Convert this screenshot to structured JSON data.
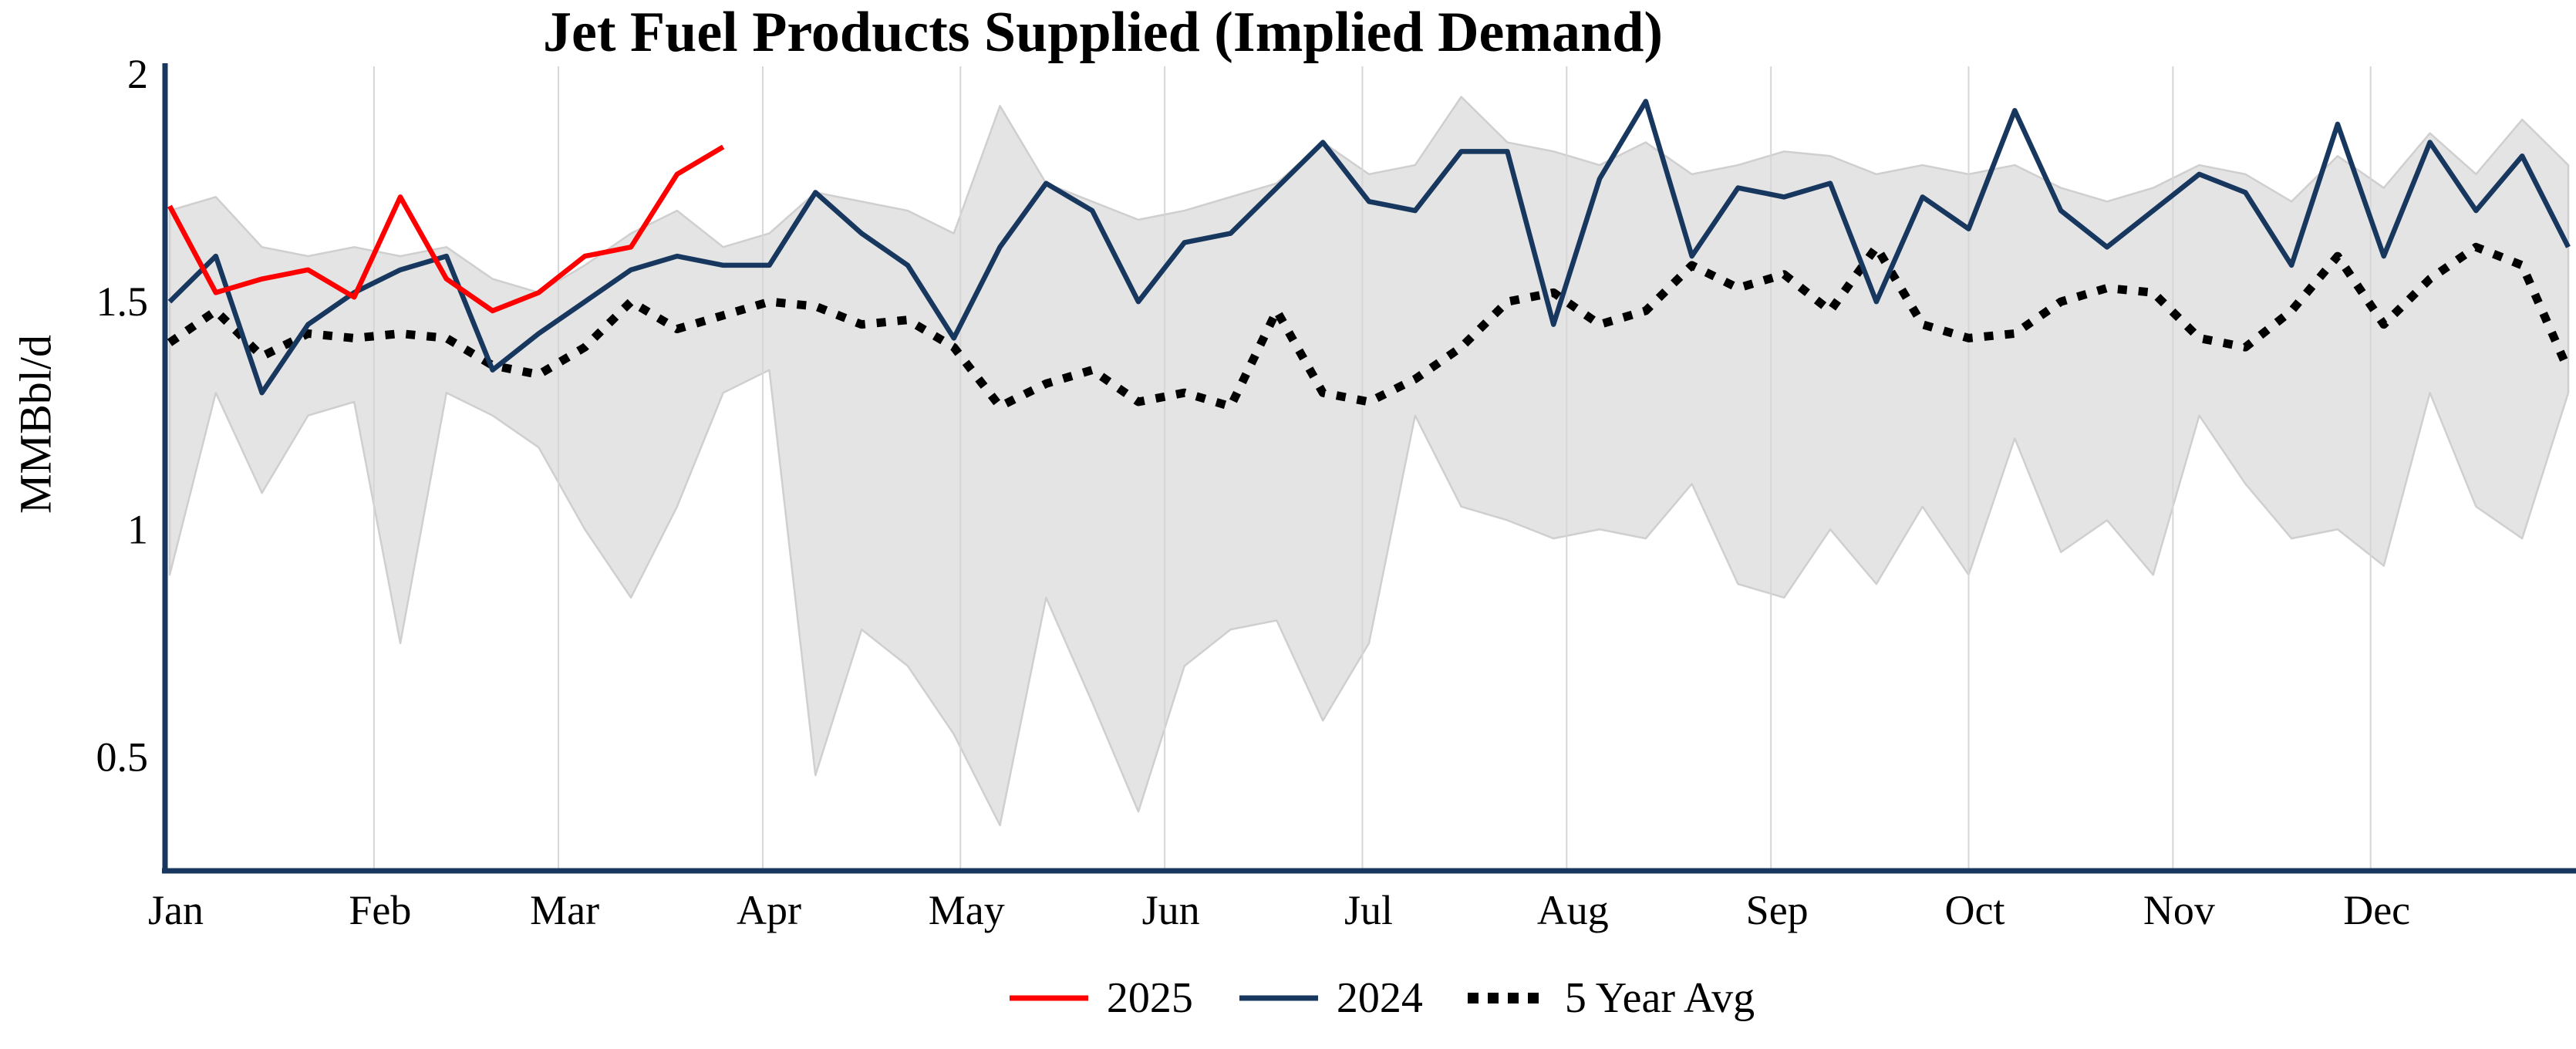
{
  "chart_data": {
    "type": "line",
    "title": "Jet Fuel Products Supplied (Implied Demand)",
    "ylabel": "MMBbl/d",
    "xlabel": "",
    "x_unit": "week",
    "ylim": [
      0.25,
      2.0
    ],
    "y_ticks": [
      2,
      1.5,
      1,
      0.5
    ],
    "y_tick_labels": [
      "2",
      "1.5",
      "1",
      "0.5"
    ],
    "x_tick_labels": [
      "Jan",
      "Feb",
      "Mar",
      "Apr",
      "May",
      "Jun",
      "Jul",
      "Aug",
      "Sep",
      "Oct",
      "Nov",
      "Dec"
    ],
    "month_start_days": [
      0,
      31,
      59,
      90,
      120,
      151,
      181,
      212,
      243,
      273,
      304,
      334
    ],
    "grid": "vertical-light",
    "legend_position": "bottom-center",
    "colors": {
      "s2025": "#fe0000",
      "s2024": "#17375e",
      "avg": "#000000",
      "band": "#e4e4e4",
      "band_edge": "#cfcfcf",
      "axis": "#17375e",
      "gridline": "#d6d6d6"
    },
    "series": [
      {
        "name": "2025",
        "color_key": "s2025",
        "style": "solid",
        "values": [
          1.71,
          1.52,
          1.55,
          1.57,
          1.51,
          1.73,
          1.55,
          1.48,
          1.52,
          1.6,
          1.62,
          1.78,
          1.84
        ]
      },
      {
        "name": "2024",
        "color_key": "s2024",
        "style": "solid",
        "values": [
          1.5,
          1.6,
          1.3,
          1.45,
          1.52,
          1.57,
          1.6,
          1.35,
          1.43,
          1.5,
          1.57,
          1.6,
          1.58,
          1.58,
          1.74,
          1.65,
          1.58,
          1.42,
          1.62,
          1.76,
          1.7,
          1.5,
          1.63,
          1.65,
          1.75,
          1.85,
          1.72,
          1.7,
          1.83,
          1.83,
          1.45,
          1.77,
          1.94,
          1.6,
          1.75,
          1.73,
          1.76,
          1.5,
          1.73,
          1.66,
          1.92,
          1.7,
          1.62,
          1.7,
          1.78,
          1.74,
          1.58,
          1.89,
          1.6,
          1.85,
          1.7,
          1.82,
          1.62
        ]
      },
      {
        "name": "5 Year Avg",
        "color_key": "avg",
        "style": "dotted",
        "values": [
          1.41,
          1.48,
          1.38,
          1.43,
          1.42,
          1.43,
          1.42,
          1.36,
          1.34,
          1.4,
          1.5,
          1.44,
          1.47,
          1.5,
          1.49,
          1.45,
          1.46,
          1.4,
          1.27,
          1.32,
          1.35,
          1.28,
          1.3,
          1.27,
          1.48,
          1.3,
          1.28,
          1.33,
          1.4,
          1.5,
          1.52,
          1.45,
          1.48,
          1.58,
          1.53,
          1.56,
          1.48,
          1.62,
          1.45,
          1.42,
          1.43,
          1.5,
          1.53,
          1.52,
          1.42,
          1.4,
          1.48,
          1.6,
          1.45,
          1.55,
          1.62,
          1.58,
          1.35
        ]
      }
    ],
    "band": {
      "upper": [
        1.7,
        1.73,
        1.62,
        1.6,
        1.62,
        1.6,
        1.62,
        1.55,
        1.52,
        1.58,
        1.65,
        1.7,
        1.62,
        1.65,
        1.74,
        1.72,
        1.7,
        1.65,
        1.93,
        1.76,
        1.72,
        1.68,
        1.7,
        1.73,
        1.76,
        1.85,
        1.78,
        1.8,
        1.95,
        1.85,
        1.83,
        1.8,
        1.85,
        1.78,
        1.8,
        1.83,
        1.82,
        1.78,
        1.8,
        1.78,
        1.8,
        1.75,
        1.72,
        1.75,
        1.8,
        1.78,
        1.72,
        1.82,
        1.75,
        1.87,
        1.78,
        1.9,
        1.8
      ],
      "lower": [
        0.9,
        1.3,
        1.08,
        1.25,
        1.28,
        0.75,
        1.3,
        1.25,
        1.18,
        1.0,
        0.85,
        1.05,
        1.3,
        1.35,
        0.46,
        0.78,
        0.7,
        0.55,
        0.35,
        0.85,
        0.62,
        0.38,
        0.7,
        0.78,
        0.8,
        0.58,
        0.75,
        1.25,
        1.05,
        1.02,
        0.98,
        1.0,
        0.98,
        1.1,
        0.88,
        0.85,
        1.0,
        0.88,
        1.05,
        0.9,
        1.2,
        0.95,
        1.02,
        0.9,
        1.25,
        1.1,
        0.98,
        1.0,
        0.92,
        1.3,
        1.05,
        0.98,
        1.3
      ]
    }
  }
}
